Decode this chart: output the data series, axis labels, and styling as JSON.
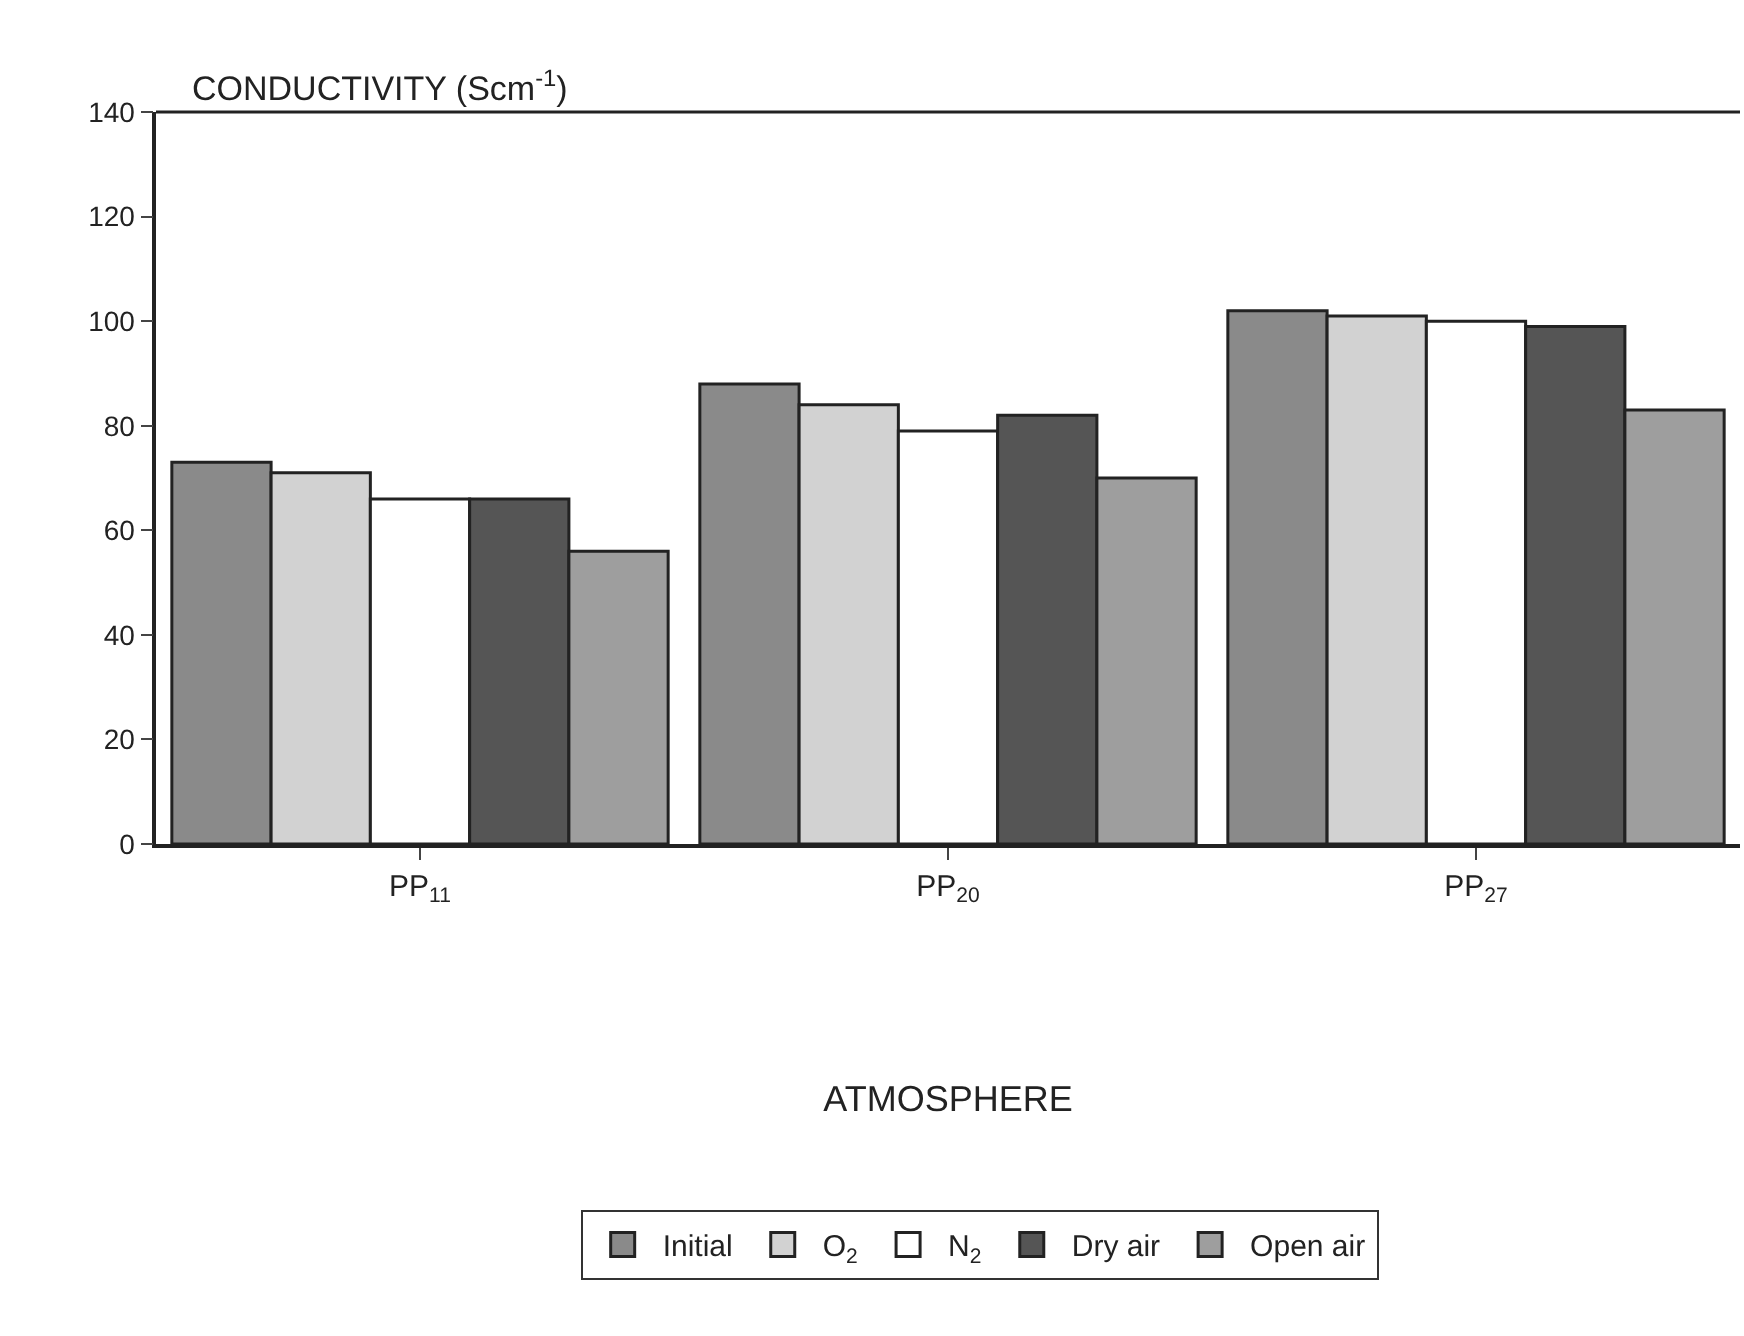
{
  "chart_data": {
    "type": "bar",
    "ylabel": "CONDUCTIVITY (Scm$^{-1}$)",
    "xlabel": "ATMOSPHERE",
    "categories": [
      "PP$_{11}$",
      "PP$_{20}$",
      "PP$_{27}$"
    ],
    "series": [
      {
        "name": "Initial",
        "color": "#8a8a8a",
        "values": [
          73,
          88,
          102
        ]
      },
      {
        "name": "O$_{2}$",
        "color": "#d2d2d2",
        "values": [
          71,
          84,
          101
        ]
      },
      {
        "name": "N$_{2}$",
        "color": "#ffffff",
        "values": [
          66,
          79,
          100
        ]
      },
      {
        "name": "Dry air",
        "color": "#555555",
        "values": [
          66,
          82,
          99
        ]
      },
      {
        "name": "Open air",
        "color": "#9e9e9e",
        "values": [
          56,
          70,
          83
        ]
      }
    ],
    "ylim": [
      0,
      140
    ],
    "yticks": [
      0,
      20,
      40,
      60,
      80,
      100,
      120,
      140
    ],
    "grid": false,
    "legend": "bottom"
  }
}
